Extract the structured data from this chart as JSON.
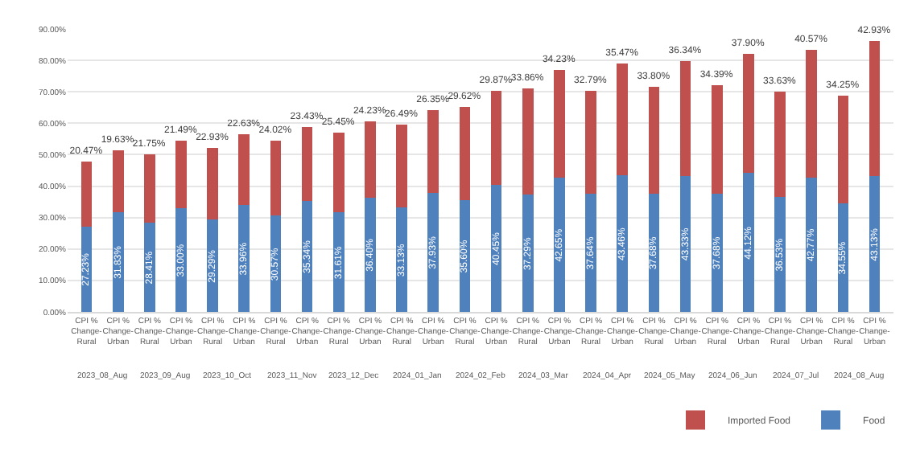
{
  "chart_data": {
    "type": "bar",
    "stacked": true,
    "categories": [
      "CPI % Change-Rural",
      "CPI % Change-Urban",
      "CPI % Change-Rural",
      "CPI % Change-Urban",
      "CPI % Change-Rural",
      "CPI % Change-Urban",
      "CPI % Change-Rural",
      "CPI % Change-Urban",
      "CPI % Change-Rural",
      "CPI % Change-Urban",
      "CPI % Change-Rural",
      "CPI % Change-Urban",
      "CPI % Change-Rural",
      "CPI % Change-Urban",
      "CPI % Change-Rural",
      "CPI % Change-Urban",
      "CPI % Change-Rural",
      "CPI % Change-Urban",
      "CPI % Change-Rural",
      "CPI % Change-Urban",
      "CPI % Change-Rural",
      "CPI % Change-Urban",
      "CPI % Change-Rural",
      "CPI % Change-Urban",
      "CPI % Change-Rural",
      "CPI % Change-Urban"
    ],
    "annotations": [
      "2023_08_Aug",
      "2023_09_Aug",
      "2023_10_Oct",
      "2023_11_Nov",
      "2023_12_Dec",
      "2024_01_Jan",
      "2024_02_Feb",
      "2024_03_Mar",
      "2024_04_Apr",
      "2024_05_May",
      "2024_06_Jun",
      "2024_07_Jul",
      "2024_08_Aug"
    ],
    "series": [
      {
        "name": "Food",
        "color": "#4f81bd",
        "values": [
          27.23,
          31.83,
          28.41,
          33.0,
          29.29,
          33.96,
          30.57,
          35.34,
          31.61,
          36.4,
          33.13,
          37.93,
          35.6,
          40.45,
          37.29,
          42.65,
          37.64,
          43.46,
          37.68,
          43.33,
          37.68,
          44.12,
          36.53,
          42.77,
          34.55,
          43.13
        ],
        "value_labels": [
          "27.23%",
          "31.83%",
          "28.41%",
          "33.00%",
          "29.29%",
          "33.96%",
          "30.57%",
          "35.34%",
          "31.61%",
          "36.40%",
          "33.13%",
          "37.93%",
          "35.60%",
          "40.45%",
          "37.29%",
          "42.65%",
          "37.64%",
          "43.46%",
          "37.68%",
          "43.33%",
          "37.68%",
          "44.12%",
          "36.53%",
          "42.77%",
          "34.55%",
          "43.13%"
        ]
      },
      {
        "name": "Imported Food",
        "color": "#c0504d",
        "values": [
          20.47,
          19.63,
          21.75,
          21.49,
          22.93,
          22.63,
          24.02,
          23.43,
          25.45,
          24.23,
          26.49,
          26.35,
          29.62,
          29.87,
          33.86,
          34.23,
          32.79,
          35.47,
          33.8,
          36.34,
          34.39,
          37.9,
          33.63,
          40.57,
          34.25,
          42.93
        ],
        "value_labels": [
          "20.47%",
          "19.63%",
          "21.75%",
          "21.49%",
          "22.93%",
          "22.63%",
          "24.02%",
          "23.43%",
          "25.45%",
          "24.23%",
          "26.49%",
          "26.35%",
          "29.62%",
          "29.87%",
          "33.86%",
          "34.23%",
          "32.79%",
          "35.47%",
          "33.80%",
          "36.34%",
          "34.39%",
          "37.90%",
          "33.63%",
          "40.57%",
          "34.25%",
          "42.93%"
        ]
      }
    ],
    "ylim": [
      0,
      90
    ],
    "yticks": [
      {
        "value": 0,
        "label": "0.00%"
      },
      {
        "value": 10,
        "label": "10.00%"
      },
      {
        "value": 20,
        "label": "20.00%"
      },
      {
        "value": 30,
        "label": "30.00%"
      },
      {
        "value": 40,
        "label": "40.00%"
      },
      {
        "value": 50,
        "label": "50.00%"
      },
      {
        "value": 60,
        "label": "60.00%"
      },
      {
        "value": 70,
        "label": "70.00%"
      },
      {
        "value": 80,
        "label": "80.00%"
      },
      {
        "value": 90,
        "label": "90.00%"
      }
    ],
    "grid": "y",
    "legend": "bottom right"
  }
}
